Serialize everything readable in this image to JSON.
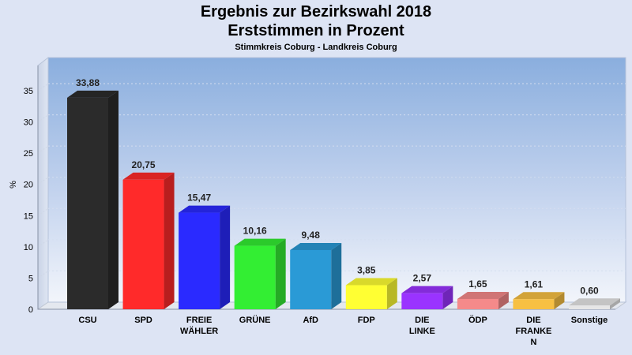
{
  "header": {
    "title_line1": "Ergebnis zur Bezirkswahl 2018",
    "title_line2": "Erststimmen in Prozent",
    "subtitle": "Stimmkreis Coburg - Landkreis Coburg"
  },
  "chart_data": {
    "type": "bar",
    "title": "Ergebnis zur Bezirkswahl 2018 Erststimmen in Prozent",
    "subtitle": "Stimmkreis Coburg - Landkreis Coburg",
    "xlabel": "",
    "ylabel": "%",
    "ylim": [
      0,
      35
    ],
    "yticks": [
      0,
      5,
      10,
      15,
      20,
      25,
      30,
      35
    ],
    "grid": true,
    "categories": [
      [
        "CSU"
      ],
      [
        "SPD"
      ],
      [
        "FREIE",
        "WÄHLER"
      ],
      [
        "GRÜNE"
      ],
      [
        "AfD"
      ],
      [
        "FDP"
      ],
      [
        "DIE",
        "LINKE"
      ],
      [
        "ÖDP"
      ],
      [
        "DIE",
        "FRANKE",
        "N"
      ],
      [
        "Sonstige"
      ]
    ],
    "values": [
      33.88,
      20.75,
      15.47,
      10.16,
      9.48,
      3.85,
      2.57,
      1.65,
      1.61,
      0.6
    ],
    "value_labels": [
      "33,88",
      "20,75",
      "15,47",
      "10,16",
      "9,48",
      "3,85",
      "2,57",
      "1,65",
      "1,61",
      "0,60"
    ],
    "colors": [
      "#2b2b2b",
      "#ff2a2a",
      "#2a2aff",
      "#33ee33",
      "#2a9ad6",
      "#ffff33",
      "#9a33ff",
      "#f58a8a",
      "#f7c043",
      "#e6e6e6"
    ]
  }
}
